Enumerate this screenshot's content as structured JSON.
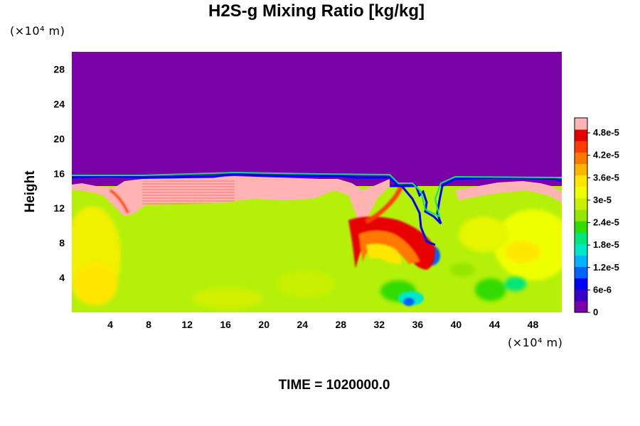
{
  "chart_data": {
    "type": "heatmap",
    "title": "H2S-g Mixing Ratio [kg/kg]",
    "ylabel": "Height",
    "y_unit": "(×10⁴ m)",
    "x_unit": "(×10⁴ m)",
    "footer": "TIME = 1020000.0",
    "xlim": [
      0,
      51
    ],
    "ylim": [
      0,
      30
    ],
    "x_ticks": [
      4,
      8,
      12,
      16,
      20,
      24,
      28,
      32,
      36,
      40,
      44,
      48
    ],
    "y_ticks": [
      4,
      8,
      12,
      16,
      20,
      24,
      28
    ],
    "colorbar": {
      "range": [
        0,
        5.2e-05
      ],
      "tick_values": [
        0,
        6e-06,
        1.2e-05,
        1.8e-05,
        2.4e-05,
        3e-05,
        3.6e-05,
        4.2e-05,
        4.8e-05
      ],
      "tick_labels": [
        "0",
        "6e-6",
        "1.2e-5",
        "1.8e-5",
        "2.4e-5",
        "3e-5",
        "3.6e-5",
        "4.2e-5",
        "4.8e-5"
      ],
      "colors": [
        "#7a00a8",
        "#3a00c8",
        "#0000ff",
        "#0064ff",
        "#00b4ff",
        "#00e6c8",
        "#00e678",
        "#32dc00",
        "#96e600",
        "#c8f000",
        "#f0ff00",
        "#ffe600",
        "#ffb400",
        "#ff7800",
        "#ff3c00",
        "#e60000",
        "#ffb4b4"
      ]
    },
    "fill_colors": {
      "upper": "#7a00a8",
      "lower": "#b4f00a",
      "peak": "#ffb4b4"
    }
  }
}
